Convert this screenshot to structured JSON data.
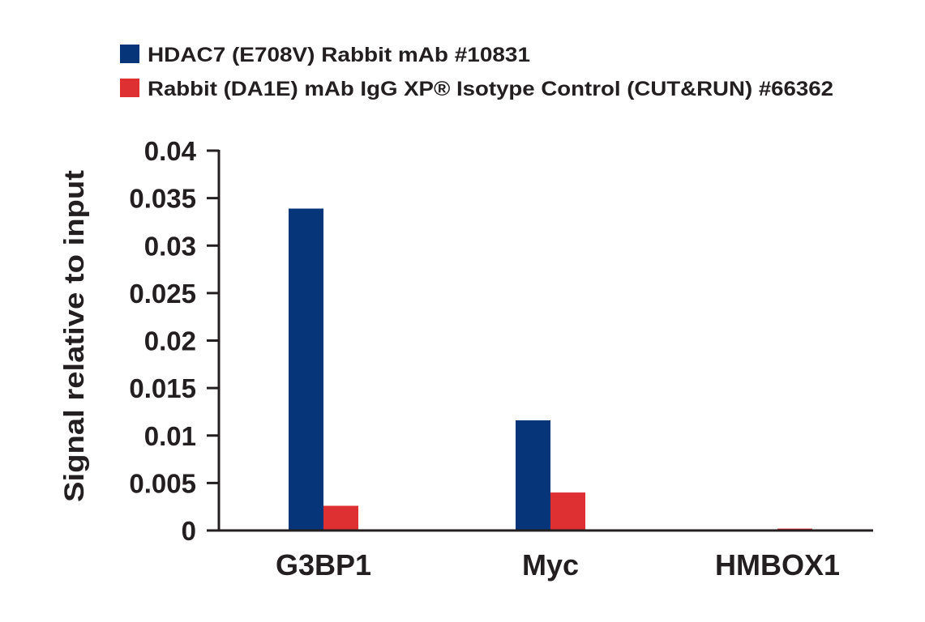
{
  "chart_data": {
    "type": "bar",
    "title": "",
    "xlabel": "",
    "ylabel": "Signal relative to input",
    "ylim": [
      0,
      0.04
    ],
    "yticks": [
      "0",
      "0.005",
      "0.01",
      "0.015",
      "0.02",
      "0.025",
      "0.03",
      "0.035",
      "0.04"
    ],
    "categories": [
      "G3BP1",
      "Myc",
      "HMBOX1"
    ],
    "grid": false,
    "legend_position": "top-left",
    "series": [
      {
        "name": "HDAC7 (E708V) Rabbit mAb #10831",
        "color": "#06357a",
        "values": [
          0.0339,
          0.0116,
          0.0
        ]
      },
      {
        "name": "Rabbit (DA1E) mAb IgG XP® Isotype Control (CUT&RUN) #66362",
        "color": "#de2f32",
        "values": [
          0.0026,
          0.004,
          0.0002
        ]
      }
    ]
  }
}
